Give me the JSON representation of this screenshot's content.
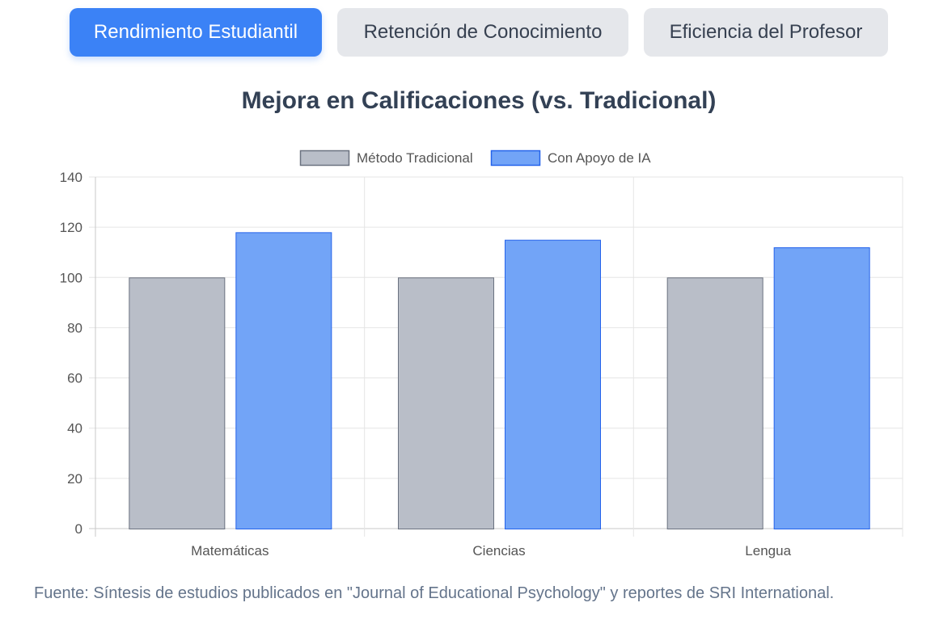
{
  "tabs": [
    {
      "label": "Rendimiento Estudiantil",
      "active": true
    },
    {
      "label": "Retención de Conocimiento",
      "active": false
    },
    {
      "label": "Eficiencia del Profesor",
      "active": false
    }
  ],
  "colors": {
    "accent": "#3b82f6",
    "traditional_fill": "#b9bec8",
    "traditional_stroke": "#6b7280",
    "ai_fill": "#72a4f7",
    "ai_stroke": "#2563eb"
  },
  "chart_data": {
    "type": "bar",
    "title": "Mejora en Calificaciones (vs. Tradicional)",
    "xlabel": "",
    "ylabel": "",
    "categories": [
      "Matemáticas",
      "Ciencias",
      "Lengua"
    ],
    "series": [
      {
        "name": "Método Tradicional",
        "values": [
          100,
          100,
          100
        ]
      },
      {
        "name": "Con Apoyo de IA",
        "values": [
          118,
          115,
          112
        ]
      }
    ],
    "ylim": [
      0,
      140
    ],
    "yticks": [
      "0",
      "20",
      "40",
      "60",
      "80",
      "100",
      "120",
      "140"
    ],
    "grid": true,
    "legend": "top-center"
  },
  "footer": {
    "source": "Fuente: Síntesis de estudios publicados en \"Journal of Educational Psychology\" y reportes de SRI International."
  }
}
